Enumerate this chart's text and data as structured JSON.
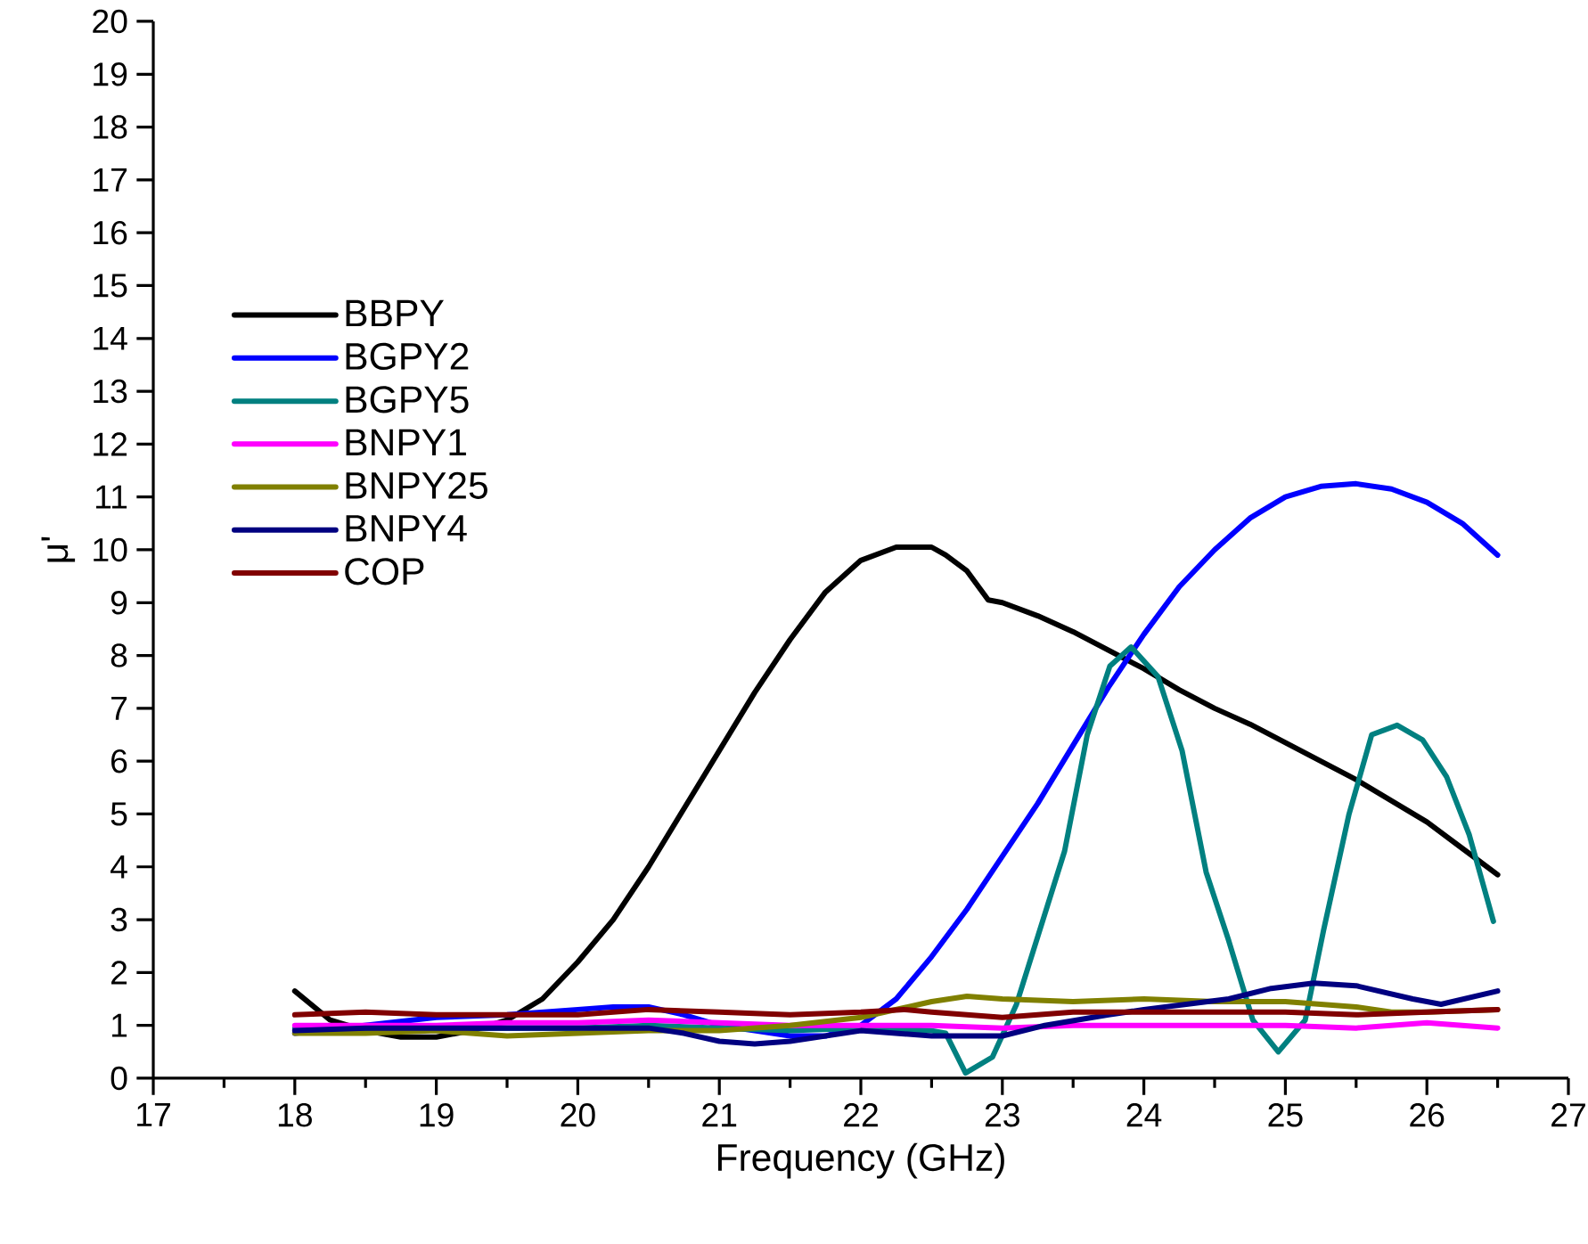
{
  "chart_data": {
    "type": "line",
    "xlabel": "Frequency (GHz)",
    "ylabel": "μ'",
    "xlim": [
      17,
      27
    ],
    "ylim": [
      0,
      20
    ],
    "xticks": [
      17,
      18,
      19,
      20,
      21,
      22,
      23,
      24,
      25,
      26,
      27
    ],
    "yticks": [
      0,
      1,
      2,
      3,
      4,
      5,
      6,
      7,
      8,
      9,
      10,
      11,
      12,
      13,
      14,
      15,
      16,
      17,
      18,
      19,
      20
    ],
    "grid": false,
    "legend": "left",
    "marker": "none",
    "line_style": "solid",
    "series": [
      {
        "name": "BBPY",
        "color": "#000000",
        "x": [
          18,
          18.25,
          18.5,
          18.75,
          19,
          19.25,
          19.5,
          19.75,
          20,
          20.25,
          20.5,
          20.75,
          21,
          21.25,
          21.5,
          21.75,
          22,
          22.25,
          22.5,
          22.6,
          22.75,
          22.9,
          23,
          23.25,
          23.5,
          23.75,
          24,
          24.25,
          24.5,
          24.75,
          25,
          25.25,
          25.5,
          25.75,
          26,
          26.25,
          26.5
        ],
        "values": [
          1.65,
          1.1,
          0.9,
          0.78,
          0.78,
          0.9,
          1.1,
          1.5,
          2.2,
          3.0,
          4.0,
          5.1,
          6.2,
          7.3,
          8.3,
          9.2,
          9.8,
          10.05,
          10.05,
          9.9,
          9.6,
          9.05,
          9.0,
          8.75,
          8.45,
          8.1,
          7.75,
          7.35,
          7.0,
          6.7,
          6.35,
          6.0,
          5.65,
          5.25,
          4.85,
          4.35,
          3.85
        ]
      },
      {
        "name": "BGPY2",
        "color": "#0000ff",
        "x": [
          18,
          18.5,
          19,
          19.5,
          20,
          20.25,
          20.5,
          20.75,
          21,
          21.25,
          21.5,
          21.75,
          22,
          22.25,
          22.5,
          22.75,
          23,
          23.25,
          23.5,
          23.75,
          24,
          24.25,
          24.5,
          24.75,
          25,
          25.25,
          25.5,
          25.75,
          26,
          26.25,
          26.5
        ],
        "values": [
          0.85,
          1.0,
          1.15,
          1.2,
          1.3,
          1.35,
          1.35,
          1.2,
          1.0,
          0.9,
          0.8,
          0.8,
          1.0,
          1.5,
          2.3,
          3.2,
          4.2,
          5.2,
          6.3,
          7.4,
          8.4,
          9.3,
          10.0,
          10.6,
          11.0,
          11.2,
          11.25,
          11.15,
          10.9,
          10.5,
          9.9
        ]
      },
      {
        "name": "BGPY5",
        "color": "#008080",
        "x": [
          18,
          18.5,
          19,
          19.5,
          20,
          20.5,
          21,
          21.5,
          22,
          22.5,
          22.6,
          22.74,
          22.93,
          23.1,
          23.44,
          23.6,
          23.76,
          23.91,
          24.1,
          24.27,
          24.44,
          24.6,
          24.77,
          24.95,
          25.14,
          25.27,
          25.45,
          25.61,
          25.79,
          25.97,
          26.14,
          26.3,
          26.47
        ],
        "values": [
          0.95,
          0.95,
          0.95,
          0.95,
          0.95,
          1.0,
          0.95,
          0.9,
          0.95,
          0.9,
          0.85,
          0.1,
          0.4,
          1.4,
          4.3,
          6.5,
          7.8,
          8.16,
          7.6,
          6.2,
          3.9,
          2.6,
          1.1,
          0.5,
          1.1,
          2.8,
          5.0,
          6.5,
          6.68,
          6.4,
          5.7,
          4.6,
          2.97
        ]
      },
      {
        "name": "BNPY1",
        "color": "#ff00ff",
        "x": [
          18,
          18.5,
          19,
          19.5,
          20,
          20.5,
          21,
          21.5,
          22,
          22.5,
          23,
          23.5,
          24,
          24.5,
          25,
          25.5,
          26,
          26.5
        ],
        "values": [
          1.0,
          1.0,
          1.0,
          1.05,
          1.05,
          1.1,
          1.05,
          1.0,
          1.0,
          1.0,
          0.95,
          1.0,
          1.0,
          1.0,
          1.0,
          0.95,
          1.05,
          0.95
        ]
      },
      {
        "name": "BNPY25",
        "color": "#808000",
        "x": [
          18,
          18.5,
          19,
          19.5,
          20,
          20.5,
          21,
          21.5,
          22,
          22.5,
          22.75,
          23,
          23.5,
          24,
          24.5,
          25,
          25.5,
          25.75,
          26,
          26.5
        ],
        "values": [
          0.85,
          0.85,
          0.9,
          0.8,
          0.85,
          0.9,
          0.9,
          1.0,
          1.15,
          1.45,
          1.55,
          1.5,
          1.45,
          1.5,
          1.45,
          1.45,
          1.35,
          1.25,
          1.25,
          1.3
        ]
      },
      {
        "name": "BNPY4",
        "color": "#000080",
        "x": [
          18,
          18.5,
          19,
          19.5,
          20,
          20.5,
          20.75,
          21,
          21.25,
          21.5,
          22,
          22.5,
          23,
          23.3,
          23.75,
          24,
          24.3,
          24.6,
          24.9,
          25.2,
          25.5,
          25.9,
          26.1,
          26.5
        ],
        "values": [
          0.9,
          0.95,
          0.95,
          0.95,
          0.95,
          0.95,
          0.85,
          0.7,
          0.65,
          0.7,
          0.9,
          0.8,
          0.8,
          1.0,
          1.2,
          1.3,
          1.4,
          1.5,
          1.7,
          1.8,
          1.75,
          1.5,
          1.4,
          1.65
        ]
      },
      {
        "name": "COP",
        "color": "#800000",
        "x": [
          18,
          18.5,
          19,
          19.5,
          20,
          20.5,
          21,
          21.5,
          22,
          22.3,
          22.5,
          23,
          23.5,
          24,
          24.5,
          25,
          25.5,
          26,
          26.5
        ],
        "values": [
          1.2,
          1.25,
          1.2,
          1.2,
          1.2,
          1.3,
          1.25,
          1.2,
          1.25,
          1.3,
          1.25,
          1.15,
          1.25,
          1.25,
          1.25,
          1.25,
          1.2,
          1.25,
          1.3
        ]
      }
    ]
  }
}
